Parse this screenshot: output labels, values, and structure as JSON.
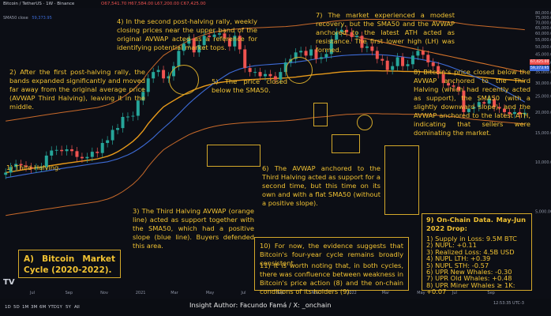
{
  "header": {
    "symbol": "Bitcoin / TetherUS · 1W · Binance",
    "ohlc": "O67,541.70 H67,584.00 L67,200.00 C67,425.00",
    "sma_label": "SMA50 close",
    "sma_value": "59,373.95"
  },
  "colors": {
    "background": "#0c0e15",
    "annotation": "#f1c232",
    "up_candle": "#26a69a",
    "down_candle": "#ef5350",
    "sma50": "#3d6bd6",
    "avwap_origin": "#c96a2a",
    "avwap_halving": "#e89a1a",
    "avwap_ath": "#d4732a"
  },
  "annotations": {
    "a1": "1) Third Halving.",
    "a2": "2) After the first post-halving rally, the bands expanded significantly and moved far away from the original average price (AVWAP Third Halving), leaving it in the middle.",
    "a3": "3) The Third Halving AVWAP (orange line) acted as support together with the SMA50, which had a positive slope (blue line). Buyers defended this area.",
    "a4": "4) In the second post-halving rally, weekly closing prices near the upper band of the original AVWAP acted as a reference for identifying potential market tops.",
    "a5": "5) The price closed below the SMA50.",
    "a6": "6) The AVWAP anchored to the Third Halving acted as support for a second time, but this time on its own and with a flat SMA50 (without a positive slope).",
    "a7": "7) The market experienced a modest recovery, but the SMA50 and the AVWAP anchored to the latest ATH acted as resistance. The first lower high (LH) was formed.",
    "a8": "8) Bitcoin's price closed below the AVWAP anchored to the Third Halving (which had recently acted as support), the SMA50 (with a slightly downward slope), and the AVWAP anchored to the latest ATH, indicating that sellers were dominating the market.",
    "a10": "10) For now, the evidence suggests that Bitcoin's four-year cycle remains broadly consistent.",
    "a11": "11) It is worth noting that, in both cycles, there was confluence between weakness in Bitcoin's price action (8) and the on-chain conditions of its holders (9)."
  },
  "title_box": "A) Bitcoin Market Cycle (2020-2022).",
  "onchain": {
    "title": "9) On-Chain Data. May-Jun 2022 Drop:",
    "items": [
      "1) Supply in Loss: 9.5M BTC",
      "2) NUPL: +0.11",
      "3) Realized Loss: 4.5B USD",
      "4) NUPL LTH: +0.39",
      "5) NUPL STH: -0.57",
      "6) UPR New Whales: -0.30",
      "7) UPR Old Whales: +0.48",
      "8) UPR Miner Whales ≥ 1K: +0.07"
    ]
  },
  "footer": {
    "author": "Insight Author: Facundo Famá / X: _onchain",
    "clock": "12:53:35 UTC-3",
    "timeframes": [
      "1D",
      "5D",
      "1M",
      "3M",
      "6M",
      "YTD",
      "1Y",
      "5Y",
      "All"
    ],
    "logo": "TV"
  },
  "chart_data": {
    "type": "line",
    "price_scale": "log",
    "ylim": [
      3500,
      75000
    ],
    "y_ticks": [
      80000,
      75000,
      70000,
      65000,
      60000,
      55000,
      50000,
      45000,
      40000,
      35000,
      30000,
      25000,
      20000,
      15000,
      10000,
      5000
    ],
    "x_ticks": [
      "Jul",
      "Sep",
      "Nov",
      "2021",
      "Mar",
      "May",
      "Jul",
      "Sep",
      "Nov",
      "2022",
      "Mar",
      "May",
      "Jul",
      "Sep"
    ],
    "price_tags": [
      {
        "label": "67,425.00",
        "value": 67425,
        "color": "#ef5350"
      },
      {
        "label": "59,373.95",
        "value": 59374,
        "color": "#3d6bd6"
      }
    ],
    "series": [
      {
        "name": "BTC close (weekly)",
        "values": [
          8600,
          9300,
          9700,
          9500,
          9300,
          9100,
          9200,
          9300,
          10900,
          11700,
          11800,
          11600,
          11900,
          11600,
          10700,
          10500,
          10700,
          11500,
          11300,
          13000,
          13500,
          15600,
          16000,
          18700,
          18800,
          19000,
          23500,
          26500,
          32000,
          35000,
          36000,
          32000,
          33000,
          38000,
          47000,
          52000,
          56000,
          46000,
          51000,
          58000,
          57000,
          59000,
          60000,
          56000,
          50000,
          58000,
          48000,
          37000,
          35000,
          35000,
          33000,
          34000,
          33000,
          31500,
          35000,
          40000,
          42000,
          46000,
          47000,
          44000,
          48000,
          42000,
          43000,
          45000,
          55000,
          61000,
          63000,
          61000,
          57000,
          58000,
          49000,
          50000,
          47000,
          42000,
          41000,
          36000,
          38000,
          43000,
          38000,
          39000,
          44000,
          47000,
          44500,
          40000,
          38000,
          34000,
          30000,
          29000,
          28500,
          27000,
          20000,
          21000,
          21500,
          23000,
          22500,
          24000,
          21500,
          21000,
          20000,
          19500,
          20000,
          19400,
          19800
        ]
      },
      {
        "name": "SMA50",
        "values": [
          8000,
          8100,
          8200,
          8300,
          8400,
          8500,
          8600,
          8700,
          8800,
          8900,
          9000,
          9100,
          9200,
          9300,
          9400,
          9500,
          9600,
          9700,
          9800,
          9900,
          10000,
          10200,
          10400,
          10700,
          11000,
          11400,
          11900,
          12500,
          13200,
          14000,
          15000,
          16000,
          17000,
          18200,
          19500,
          21000,
          22500,
          24000,
          25500,
          27000,
          28500,
          30000,
          31500,
          33000,
          34500,
          35500,
          36500,
          37200,
          37800,
          38200,
          38500,
          38700,
          38900,
          39100,
          39300,
          39500,
          39800,
          40200,
          40600,
          41000,
          41500,
          42000,
          42400,
          42800,
          43200,
          43600,
          44000,
          44200,
          44400,
          44500,
          44600,
          44700,
          44700,
          44600,
          44500,
          44300,
          44000,
          43600,
          43200,
          42800,
          42400,
          42000,
          41500,
          41000,
          40400,
          39700,
          38900,
          38000,
          37000,
          36000,
          35000,
          34000,
          33000,
          32000,
          31000,
          30000,
          29000,
          28000,
          27000,
          26000,
          25000,
          24000,
          23000
        ]
      },
      {
        "name": "AVWAP Third Halving",
        "values": [
          8600,
          8700,
          8800,
          8900,
          9000,
          9100,
          9200,
          9300,
          9400,
          9500,
          9600,
          9700,
          9800,
          9900,
          10000,
          10100,
          10200,
          10300,
          10400,
          10600,
          10800,
          11100,
          11500,
          12000,
          12600,
          13300,
          14200,
          15400,
          17000,
          18500,
          20000,
          21500,
          22500,
          23500,
          24500,
          25500,
          26500,
          27300,
          28000,
          28700,
          29300,
          29800,
          30200,
          30500,
          30800,
          31000,
          31200,
          31400,
          31500,
          31600,
          31700,
          31800,
          31900,
          32000,
          32100,
          32200,
          32400,
          32600,
          32900,
          33200,
          33500,
          33800,
          34000,
          34200,
          34500,
          34800,
          35000,
          35200,
          35300,
          35400,
          35500,
          35600,
          35600,
          35600,
          35500,
          35500,
          35400,
          35400,
          35300,
          35300,
          35200,
          35200,
          35100,
          35000,
          34900,
          34700,
          34500,
          34300,
          34100,
          33800,
          33400,
          33100,
          32800,
          32600,
          32400,
          32200,
          32000,
          31800,
          31600,
          31400,
          31200,
          31000,
          30800
        ]
      }
    ]
  }
}
